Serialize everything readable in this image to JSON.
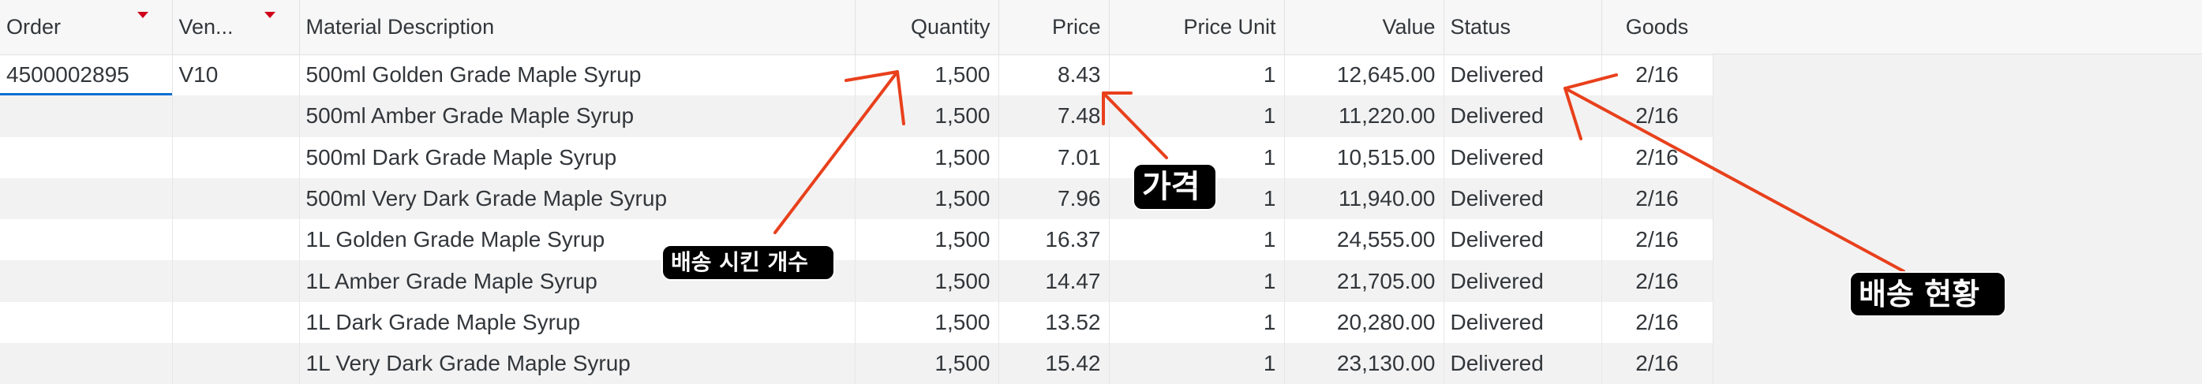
{
  "table": {
    "columns": [
      {
        "key": "order",
        "label": "Order",
        "sortable": true
      },
      {
        "key": "vendor",
        "label": "Ven...",
        "sortable": true
      },
      {
        "key": "material",
        "label": "Material Description"
      },
      {
        "key": "quantity",
        "label": "Quantity"
      },
      {
        "key": "price",
        "label": "Price"
      },
      {
        "key": "price_unit",
        "label": "Price Unit"
      },
      {
        "key": "value",
        "label": "Value"
      },
      {
        "key": "status",
        "label": "Status"
      },
      {
        "key": "goods",
        "label": "Goods"
      }
    ],
    "rows": [
      {
        "order": "4500002895",
        "vendor": "V10",
        "material": "500ml Golden Grade Maple Syrup",
        "quantity": "1,500",
        "price": "8.43",
        "price_unit": "1",
        "value": "12,645.00",
        "status": "Delivered",
        "goods": "2/16"
      },
      {
        "order": "",
        "vendor": "",
        "material": "500ml Amber Grade Maple Syrup",
        "quantity": "1,500",
        "price": "7.48",
        "price_unit": "1",
        "value": "11,220.00",
        "status": "Delivered",
        "goods": "2/16"
      },
      {
        "order": "",
        "vendor": "",
        "material": "500ml Dark Grade Maple Syrup",
        "quantity": "1,500",
        "price": "7.01",
        "price_unit": "1",
        "value": "10,515.00",
        "status": "Delivered",
        "goods": "2/16"
      },
      {
        "order": "",
        "vendor": "",
        "material": "500ml Very Dark Grade Maple Syrup",
        "quantity": "1,500",
        "price": "7.96",
        "price_unit": "1",
        "value": "11,940.00",
        "status": "Delivered",
        "goods": "2/16"
      },
      {
        "order": "",
        "vendor": "",
        "material": "1L Golden Grade Maple Syrup",
        "quantity": "1,500",
        "price": "16.37",
        "price_unit": "1",
        "value": "24,555.00",
        "status": "Delivered",
        "goods": "2/16"
      },
      {
        "order": "",
        "vendor": "",
        "material": "1L Amber Grade Maple Syrup",
        "quantity": "1,500",
        "price": "14.47",
        "price_unit": "1",
        "value": "21,705.00",
        "status": "Delivered",
        "goods": "2/16"
      },
      {
        "order": "",
        "vendor": "",
        "material": "1L Dark Grade Maple Syrup",
        "quantity": "1,500",
        "price": "13.52",
        "price_unit": "1",
        "value": "20,280.00",
        "status": "Delivered",
        "goods": "2/16"
      },
      {
        "order": "",
        "vendor": "",
        "material": "1L Very Dark Grade Maple Syrup",
        "quantity": "1,500",
        "price": "15.42",
        "price_unit": "1",
        "value": "23,130.00",
        "status": "Delivered",
        "goods": "2/16"
      }
    ]
  },
  "annotations": {
    "quantity_label": "배송 시킨 개수",
    "price_label": "가격",
    "status_label": "배송 현황"
  },
  "colors": {
    "sort_indicator": "#d0021b",
    "annotation_arrow": "#e8401c",
    "selection": "#0a6ed1"
  }
}
